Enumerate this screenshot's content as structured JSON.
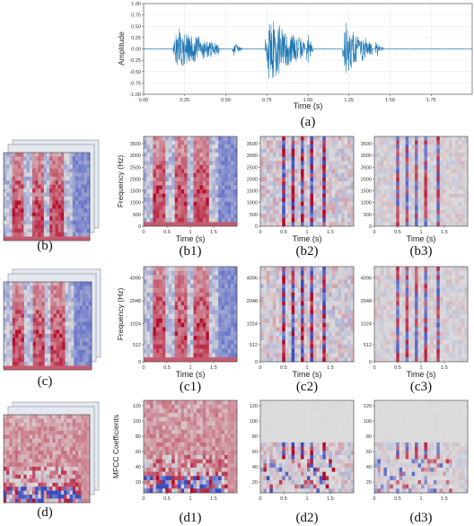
{
  "chart_data": [
    {
      "type": "line",
      "panel_label": "(a)",
      "xlabel": "Time (s)",
      "ylabel": "Amplitude",
      "xlim": [
        0.0,
        2.0
      ],
      "ylim": [
        -1.0,
        1.0
      ],
      "x_ticks": [
        "0.00",
        "0.25",
        "0.50",
        "0.75",
        "1.00",
        "1.25",
        "1.50",
        "1.75"
      ],
      "y_ticks": [
        "1.00",
        "0.75",
        "0.50",
        "0.25",
        "0.00",
        "-0.25",
        "-0.50",
        "-0.75",
        "-1.00"
      ],
      "color": "#1f77b4",
      "bursts": [
        {
          "start": 0.18,
          "end": 0.46,
          "peak": 0.58
        },
        {
          "start": 0.54,
          "end": 0.6,
          "peak": 0.18
        },
        {
          "start": 0.74,
          "end": 0.98,
          "peak": 0.92
        },
        {
          "start": 0.99,
          "end": 1.03,
          "peak": 0.52
        },
        {
          "start": 1.21,
          "end": 1.39,
          "peak": 0.72
        },
        {
          "start": 1.41,
          "end": 1.46,
          "peak": 0.22
        }
      ]
    },
    {
      "type": "heatmap",
      "rows": [
        {
          "panel_label": "(b)",
          "kind": "linear"
        },
        {
          "panel_label": "(c)",
          "kind": "mel"
        },
        {
          "panel_label": "(d)",
          "kind": "mfcc"
        }
      ],
      "stack_labels": [
        "(b)",
        "(c)",
        "(d)"
      ],
      "column_labels": [
        [
          "(b1)",
          "(b2)",
          "(b3)"
        ],
        [
          "(c1)",
          "(c2)",
          "(c3)"
        ],
        [
          "(d1)",
          "(d2)",
          "(d3)"
        ]
      ],
      "ylabels": [
        "Frequency (Hz)",
        "Frequency (Hz)",
        "MFCC Coefficients"
      ],
      "xlabel": "Time (s)",
      "x_ticks": [
        "0",
        "0.5",
        "1",
        "1.5"
      ],
      "y_ticks": [
        [
          "3500",
          "3000",
          "2500",
          "2000",
          "1500",
          "1000",
          "500",
          "0"
        ],
        [
          "4096",
          "2048",
          "1024",
          "512",
          "0"
        ],
        [
          "120",
          "100",
          "80",
          "60",
          "40",
          "20"
        ]
      ],
      "colormap": [
        "#3b4cc0",
        "#dddddd",
        "#b40426"
      ]
    }
  ]
}
